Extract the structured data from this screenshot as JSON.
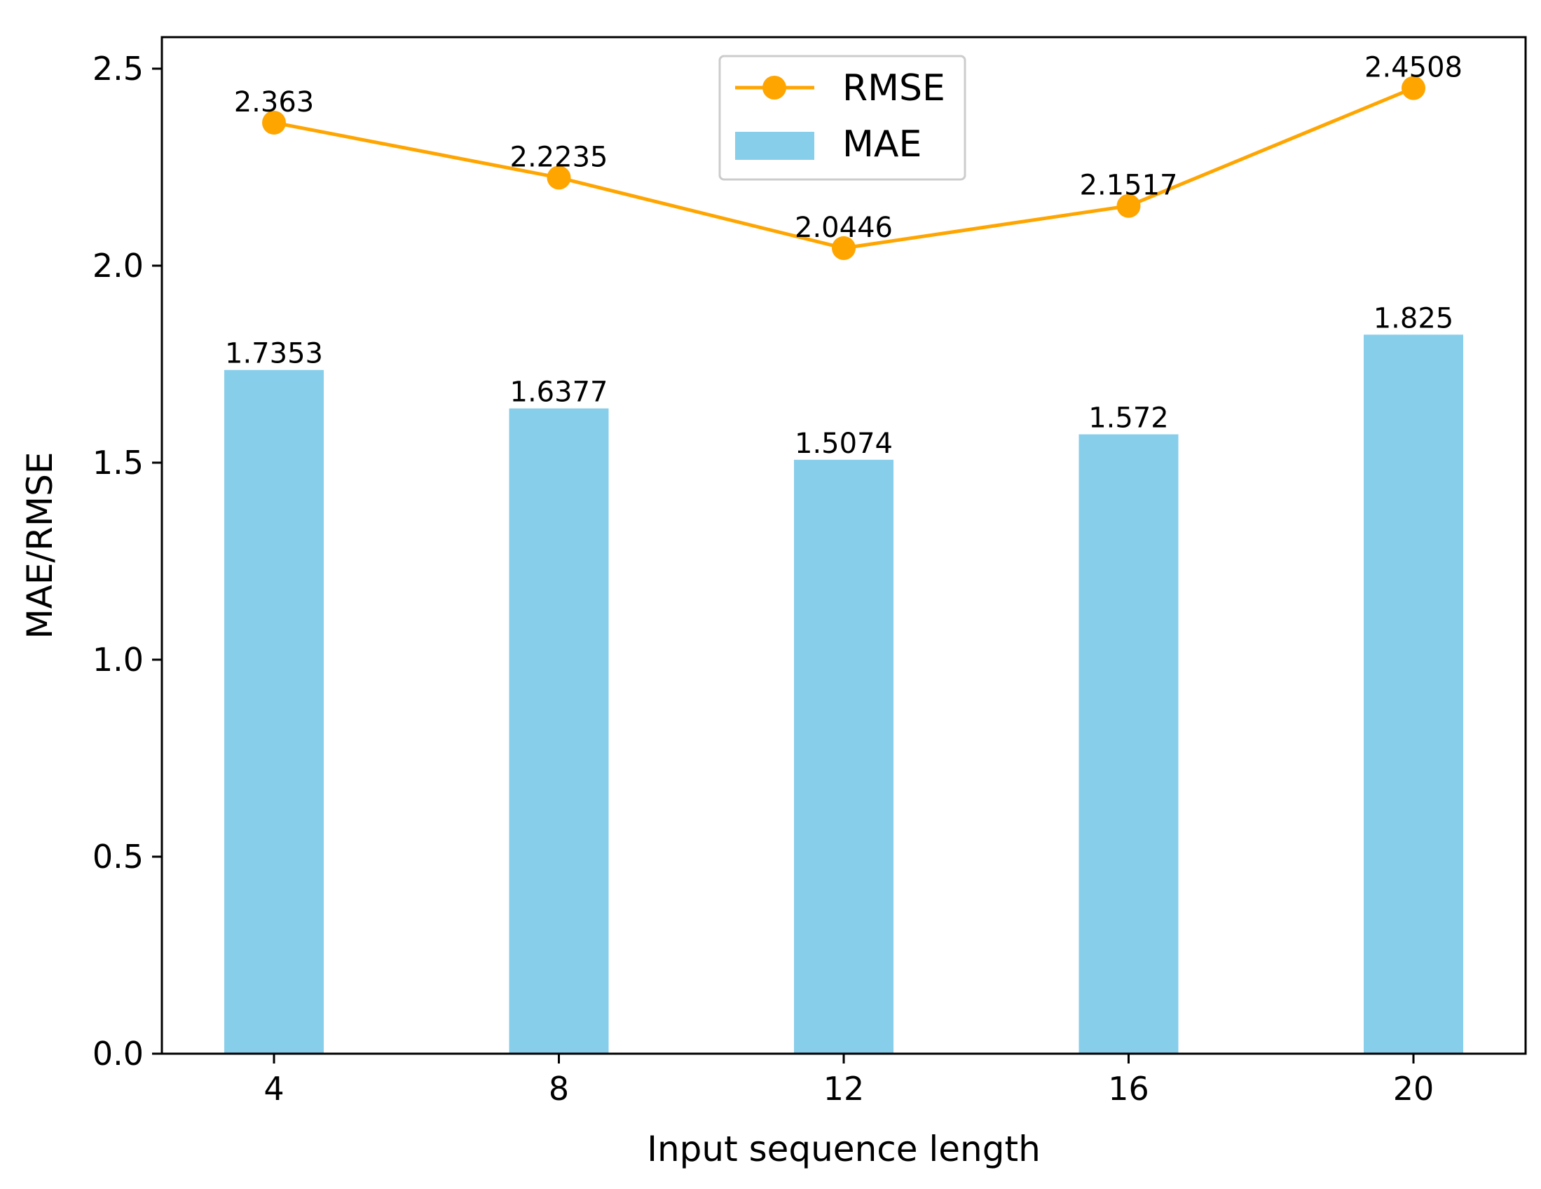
{
  "chart_data": {
    "type": "bar",
    "title": "",
    "xlabel": "Input sequence length",
    "ylabel": "MAE/RMSE",
    "categories": [
      "4",
      "8",
      "12",
      "16",
      "20"
    ],
    "ylim": [
      0,
      2.58
    ],
    "yticks": [
      "0.0",
      "0.5",
      "1.0",
      "1.5",
      "2.0",
      "2.5"
    ],
    "grid": false,
    "legend_position": "top-center",
    "series": [
      {
        "name": "RMSE",
        "type": "line",
        "marker": "circle",
        "color": "#FFA500",
        "values": [
          2.363,
          2.2235,
          2.0446,
          2.1517,
          2.4508
        ],
        "labels": [
          "2.363",
          "2.2235",
          "2.0446",
          "2.1517",
          "2.4508"
        ]
      },
      {
        "name": "MAE",
        "type": "bar",
        "color": "#87CEEB",
        "values": [
          1.7353,
          1.6377,
          1.5074,
          1.572,
          1.825
        ],
        "labels": [
          "1.7353",
          "1.6377",
          "1.5074",
          "1.572",
          "1.825"
        ]
      }
    ]
  }
}
